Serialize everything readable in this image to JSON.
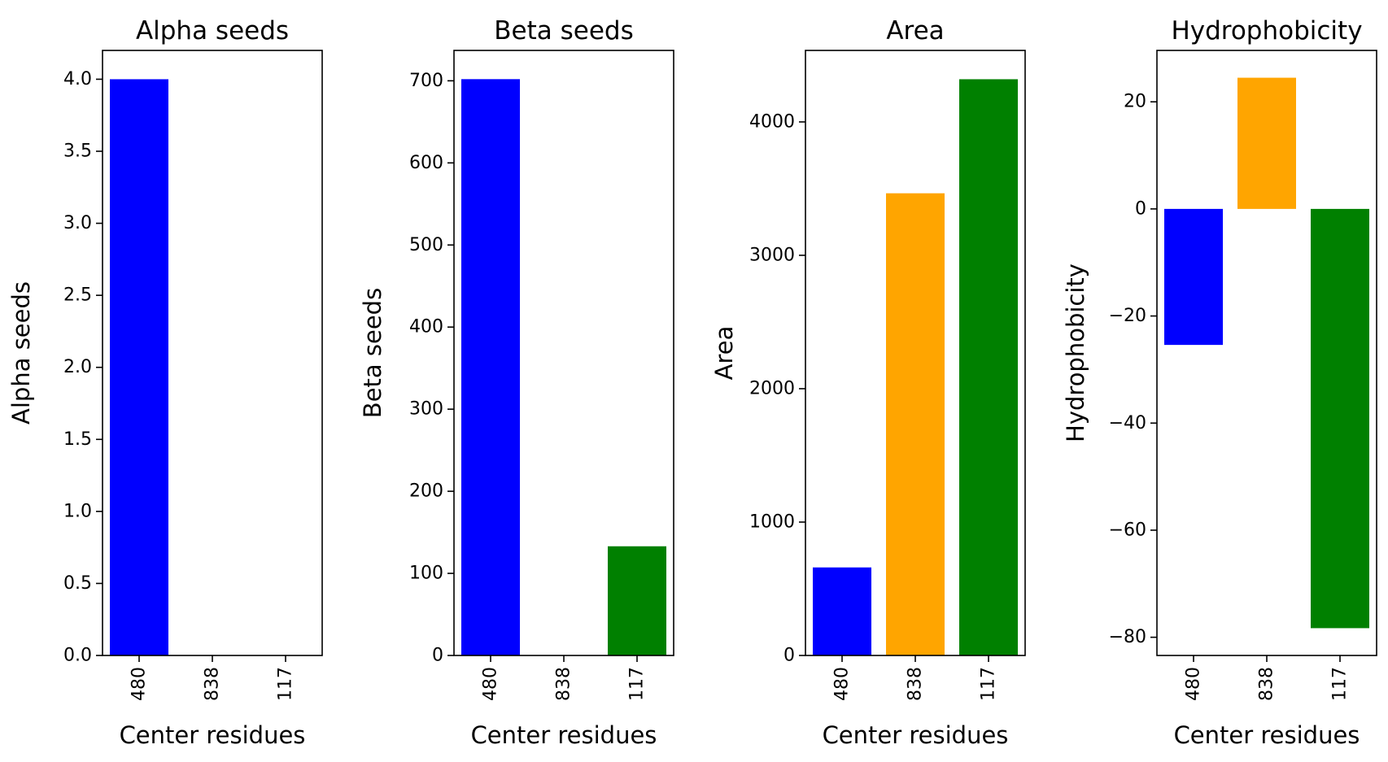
{
  "chart_data": [
    {
      "type": "bar",
      "title": "Alpha seeds",
      "xlabel": "Center residues",
      "ylabel": "Alpha seeds",
      "categories": [
        "480",
        "838",
        "117"
      ],
      "values": [
        4.0,
        0,
        0
      ],
      "colors": [
        "#0000ff",
        "#ffa500",
        "#008000"
      ],
      "ylim": [
        0,
        4.2
      ],
      "yticks": [
        0.0,
        0.5,
        1.0,
        1.5,
        2.0,
        2.5,
        3.0,
        3.5,
        4.0
      ],
      "ytick_labels": [
        "0.0",
        "0.5",
        "1.0",
        "1.5",
        "2.0",
        "2.5",
        "3.0",
        "3.5",
        "4.0"
      ],
      "grid": false,
      "legend": "none"
    },
    {
      "type": "bar",
      "title": "Beta seeds",
      "xlabel": "Center residues",
      "ylabel": "Beta seeds",
      "categories": [
        "480",
        "838",
        "117"
      ],
      "values": [
        702,
        0,
        133
      ],
      "colors": [
        "#0000ff",
        "#ffa500",
        "#008000"
      ],
      "ylim": [
        0,
        737
      ],
      "yticks": [
        0,
        100,
        200,
        300,
        400,
        500,
        600,
        700
      ],
      "ytick_labels": [
        "0",
        "100",
        "200",
        "300",
        "400",
        "500",
        "600",
        "700"
      ],
      "grid": false,
      "legend": "none"
    },
    {
      "type": "bar",
      "title": "Area",
      "xlabel": "Center residues",
      "ylabel": "Area",
      "categories": [
        "480",
        "838",
        "117"
      ],
      "values": [
        660,
        3465,
        4320
      ],
      "colors": [
        "#0000ff",
        "#ffa500",
        "#008000"
      ],
      "ylim": [
        0,
        4536
      ],
      "yticks": [
        0,
        1000,
        2000,
        3000,
        4000
      ],
      "ytick_labels": [
        "0",
        "1000",
        "2000",
        "3000",
        "4000"
      ],
      "grid": false,
      "legend": "none"
    },
    {
      "type": "bar",
      "title": "Hydrophobicity",
      "xlabel": "Center residues",
      "ylabel": "Hydrophobicity",
      "categories": [
        "480",
        "838",
        "117"
      ],
      "values": [
        -25.4,
        24.5,
        -78.3
      ],
      "colors": [
        "#0000ff",
        "#ffa500",
        "#008000"
      ],
      "ylim": [
        -83.4,
        29.6
      ],
      "yticks": [
        -80,
        -60,
        -40,
        -20,
        0,
        20
      ],
      "ytick_labels": [
        "−80",
        "−60",
        "−40",
        "−20",
        "0",
        "20"
      ],
      "grid": false,
      "legend": "none"
    }
  ]
}
